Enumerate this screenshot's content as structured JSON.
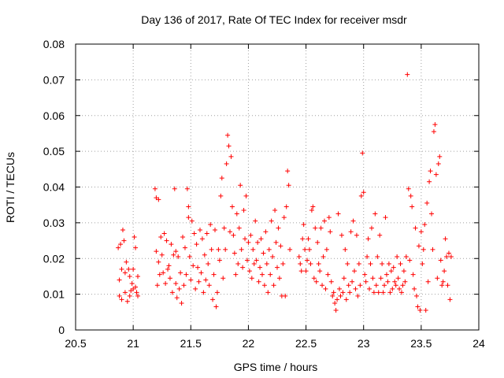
{
  "chart_data": {
    "type": "scatter",
    "title": "Day 136 of 2017, Rate Of TEC Index for receiver msdr",
    "xlabel": "GPS time / hours",
    "ylabel": "ROTI / TECUs",
    "xlim": [
      20.5,
      24
    ],
    "ylim": [
      0,
      0.08
    ],
    "grid": true,
    "marker": "plus",
    "series_color": "#ff0000",
    "x_ticks": [
      20.5,
      21,
      21.5,
      22,
      22.5,
      23,
      23.5,
      24
    ],
    "x_tick_labels": [
      "20.5",
      "21",
      "21.5",
      "22",
      "22.5",
      "23",
      "23.5",
      "24"
    ],
    "y_ticks": [
      0,
      0.01,
      0.02,
      0.03,
      0.04,
      0.05,
      0.06,
      0.07,
      0.08
    ],
    "y_tick_labels": [
      "0",
      "0.01",
      "0.02",
      "0.03",
      "0.04",
      "0.05",
      "0.06",
      "0.07",
      "0.08"
    ],
    "series": [
      {
        "name": "ROTI",
        "points": [
          [
            20.87,
            0.023
          ],
          [
            20.88,
            0.014
          ],
          [
            20.88,
            0.0095
          ],
          [
            20.89,
            0.024
          ],
          [
            20.9,
            0.017
          ],
          [
            20.9,
            0.0085
          ],
          [
            20.91,
            0.028
          ],
          [
            20.92,
            0.025
          ],
          [
            20.93,
            0.016
          ],
          [
            20.93,
            0.0105
          ],
          [
            20.94,
            0.019
          ],
          [
            20.95,
            0.008
          ],
          [
            20.96,
            0.017
          ],
          [
            20.97,
            0.0095
          ],
          [
            20.97,
            0.015
          ],
          [
            20.98,
            0.011
          ],
          [
            20.99,
            0.013
          ],
          [
            21.0,
            0.0115
          ],
          [
            21.0,
            0.017
          ],
          [
            21.01,
            0.026
          ],
          [
            21.02,
            0.023
          ],
          [
            21.02,
            0.012
          ],
          [
            21.03,
            0.0105
          ],
          [
            21.04,
            0.015
          ],
          [
            21.04,
            0.0095
          ],
          [
            21.19,
            0.0395
          ],
          [
            21.2,
            0.037
          ],
          [
            21.2,
            0.022
          ],
          [
            21.21,
            0.0125
          ],
          [
            21.22,
            0.019
          ],
          [
            21.22,
            0.0365
          ],
          [
            21.23,
            0.0155
          ],
          [
            21.24,
            0.026
          ],
          [
            21.25,
            0.021
          ],
          [
            21.26,
            0.016
          ],
          [
            21.27,
            0.027
          ],
          [
            21.28,
            0.013
          ],
          [
            21.29,
            0.025
          ],
          [
            21.3,
            0.017
          ],
          [
            21.31,
            0.018
          ],
          [
            21.32,
            0.0145
          ],
          [
            21.33,
            0.024
          ],
          [
            21.34,
            0.0105
          ],
          [
            21.35,
            0.021
          ],
          [
            21.36,
            0.0395
          ],
          [
            21.37,
            0.013
          ],
          [
            21.37,
            0.022
          ],
          [
            21.38,
            0.009
          ],
          [
            21.39,
            0.0205
          ],
          [
            21.4,
            0.0115
          ],
          [
            21.41,
            0.016
          ],
          [
            21.42,
            0.0075
          ],
          [
            21.43,
            0.026
          ],
          [
            21.44,
            0.0125
          ],
          [
            21.45,
            0.023
          ],
          [
            21.46,
            0.0155
          ],
          [
            21.47,
            0.0395
          ],
          [
            21.48,
            0.0345
          ],
          [
            21.48,
            0.0315
          ],
          [
            21.49,
            0.0205
          ],
          [
            21.5,
            0.014
          ],
          [
            21.51,
            0.0305
          ],
          [
            21.52,
            0.018
          ],
          [
            21.53,
            0.027
          ],
          [
            21.54,
            0.0115
          ],
          [
            21.55,
            0.024
          ],
          [
            21.56,
            0.0175
          ],
          [
            21.57,
            0.0135
          ],
          [
            21.58,
            0.028
          ],
          [
            21.59,
            0.016
          ],
          [
            21.6,
            0.0255
          ],
          [
            21.61,
            0.0105
          ],
          [
            21.62,
            0.021
          ],
          [
            21.63,
            0.014
          ],
          [
            21.64,
            0.027
          ],
          [
            21.65,
            0.0185
          ],
          [
            21.66,
            0.0125
          ],
          [
            21.67,
            0.0295
          ],
          [
            21.68,
            0.0225
          ],
          [
            21.69,
            0.0085
          ],
          [
            21.7,
            0.0155
          ],
          [
            21.71,
            0.028
          ],
          [
            21.72,
            0.0065
          ],
          [
            21.73,
            0.0105
          ],
          [
            21.74,
            0.0225
          ],
          [
            21.75,
            0.0195
          ],
          [
            21.76,
            0.0375
          ],
          [
            21.77,
            0.0425
          ],
          [
            21.78,
            0.0145
          ],
          [
            21.79,
            0.0285
          ],
          [
            21.8,
            0.0225
          ],
          [
            21.81,
            0.0465
          ],
          [
            21.82,
            0.0545
          ],
          [
            21.83,
            0.0515
          ],
          [
            21.84,
            0.0275
          ],
          [
            21.85,
            0.0485
          ],
          [
            21.86,
            0.0345
          ],
          [
            21.87,
            0.0265
          ],
          [
            21.88,
            0.0215
          ],
          [
            21.89,
            0.0155
          ],
          [
            21.9,
            0.0325
          ],
          [
            21.91,
            0.0185
          ],
          [
            21.92,
            0.0285
          ],
          [
            21.93,
            0.0405
          ],
          [
            21.94,
            0.0225
          ],
          [
            21.95,
            0.0175
          ],
          [
            21.96,
            0.0335
          ],
          [
            21.97,
            0.0255
          ],
          [
            21.98,
            0.0375
          ],
          [
            21.99,
            0.0195
          ],
          [
            22.0,
            0.0245
          ],
          [
            22.01,
            0.0165
          ],
          [
            22.02,
            0.0265
          ],
          [
            22.03,
            0.0145
          ],
          [
            22.04,
            0.0225
          ],
          [
            22.05,
            0.0185
          ],
          [
            22.06,
            0.0305
          ],
          [
            22.07,
            0.0195
          ],
          [
            22.08,
            0.0245
          ],
          [
            22.09,
            0.0135
          ],
          [
            22.1,
            0.0175
          ],
          [
            22.11,
            0.0255
          ],
          [
            22.12,
            0.0155
          ],
          [
            22.13,
            0.0215
          ],
          [
            22.14,
            0.0125
          ],
          [
            22.15,
            0.0275
          ],
          [
            22.16,
            0.0185
          ],
          [
            22.17,
            0.0105
          ],
          [
            22.18,
            0.0225
          ],
          [
            22.19,
            0.0155
          ],
          [
            22.2,
            0.0305
          ],
          [
            22.21,
            0.0205
          ],
          [
            22.22,
            0.0125
          ],
          [
            22.23,
            0.0335
          ],
          [
            22.24,
            0.0245
          ],
          [
            22.25,
            0.0175
          ],
          [
            22.26,
            0.0285
          ],
          [
            22.27,
            0.0145
          ],
          [
            22.28,
            0.0235
          ],
          [
            22.29,
            0.0095
          ],
          [
            22.3,
            0.0185
          ],
          [
            22.31,
            0.0315
          ],
          [
            22.32,
            0.0095
          ],
          [
            22.33,
            0.0345
          ],
          [
            22.34,
            0.0445
          ],
          [
            22.35,
            0.0405
          ],
          [
            22.36,
            0.0225
          ],
          [
            22.44,
            0.0205
          ],
          [
            22.45,
            0.0185
          ],
          [
            22.46,
            0.0165
          ],
          [
            22.47,
            0.0255
          ],
          [
            22.48,
            0.0295
          ],
          [
            22.49,
            0.0225
          ],
          [
            22.5,
            0.0165
          ],
          [
            22.51,
            0.0195
          ],
          [
            22.52,
            0.0255
          ],
          [
            22.53,
            0.0225
          ],
          [
            22.54,
            0.0185
          ],
          [
            22.55,
            0.0335
          ],
          [
            22.56,
            0.0345
          ],
          [
            22.57,
            0.0145
          ],
          [
            22.58,
            0.0285
          ],
          [
            22.59,
            0.0135
          ],
          [
            22.6,
            0.0245
          ],
          [
            22.61,
            0.0185
          ],
          [
            22.62,
            0.0165
          ],
          [
            22.63,
            0.0285
          ],
          [
            22.64,
            0.0125
          ],
          [
            22.65,
            0.0205
          ],
          [
            22.66,
            0.0305
          ],
          [
            22.67,
            0.0115
          ],
          [
            22.68,
            0.0225
          ],
          [
            22.69,
            0.0155
          ],
          [
            22.7,
            0.0315
          ],
          [
            22.71,
            0.0275
          ],
          [
            22.72,
            0.0135
          ],
          [
            22.73,
            0.0095
          ],
          [
            22.74,
            0.0105
          ],
          [
            22.75,
            0.0075
          ],
          [
            22.76,
            0.0055
          ],
          [
            22.77,
            0.0085
          ],
          [
            22.78,
            0.0325
          ],
          [
            22.79,
            0.0115
          ],
          [
            22.8,
            0.0095
          ],
          [
            22.81,
            0.0265
          ],
          [
            22.82,
            0.0105
          ],
          [
            22.83,
            0.0145
          ],
          [
            22.84,
            0.0225
          ],
          [
            22.85,
            0.0085
          ],
          [
            22.86,
            0.0185
          ],
          [
            22.87,
            0.0125
          ],
          [
            22.88,
            0.0105
          ],
          [
            22.89,
            0.0275
          ],
          [
            22.9,
            0.0135
          ],
          [
            22.91,
            0.0305
          ],
          [
            22.92,
            0.0165
          ],
          [
            22.93,
            0.0115
          ],
          [
            22.94,
            0.0265
          ],
          [
            22.95,
            0.0095
          ],
          [
            22.96,
            0.0185
          ],
          [
            22.97,
            0.0125
          ],
          [
            22.98,
            0.0375
          ],
          [
            22.99,
            0.0495
          ],
          [
            23.0,
            0.0385
          ],
          [
            23.01,
            0.0155
          ],
          [
            23.02,
            0.0135
          ],
          [
            23.03,
            0.0205
          ],
          [
            23.04,
            0.0255
          ],
          [
            23.05,
            0.0115
          ],
          [
            23.06,
            0.0185
          ],
          [
            23.07,
            0.0285
          ],
          [
            23.08,
            0.0145
          ],
          [
            23.09,
            0.0105
          ],
          [
            23.1,
            0.0325
          ],
          [
            23.11,
            0.0125
          ],
          [
            23.12,
            0.0205
          ],
          [
            23.13,
            0.0105
          ],
          [
            23.14,
            0.0265
          ],
          [
            23.15,
            0.0145
          ],
          [
            23.16,
            0.0185
          ],
          [
            23.17,
            0.0105
          ],
          [
            23.18,
            0.0125
          ],
          [
            23.19,
            0.0315
          ],
          [
            23.2,
            0.0155
          ],
          [
            23.21,
            0.0135
          ],
          [
            23.22,
            0.0185
          ],
          [
            23.23,
            0.0105
          ],
          [
            23.24,
            0.0165
          ],
          [
            23.25,
            0.0115
          ],
          [
            23.26,
            0.0175
          ],
          [
            23.27,
            0.0135
          ],
          [
            23.28,
            0.0125
          ],
          [
            23.29,
            0.0205
          ],
          [
            23.3,
            0.0145
          ],
          [
            23.31,
            0.0115
          ],
          [
            23.32,
            0.0185
          ],
          [
            23.33,
            0.0105
          ],
          [
            23.34,
            0.0125
          ],
          [
            23.35,
            0.0165
          ],
          [
            23.36,
            0.0135
          ],
          [
            23.37,
            0.0205
          ],
          [
            23.38,
            0.0715
          ],
          [
            23.39,
            0.0395
          ],
          [
            23.4,
            0.0195
          ],
          [
            23.41,
            0.0375
          ],
          [
            23.42,
            0.0345
          ],
          [
            23.43,
            0.0155
          ],
          [
            23.44,
            0.0115
          ],
          [
            23.45,
            0.0285
          ],
          [
            23.46,
            0.0095
          ],
          [
            23.47,
            0.0065
          ],
          [
            23.48,
            0.0235
          ],
          [
            23.49,
            0.0055
          ],
          [
            23.5,
            0.0275
          ],
          [
            23.51,
            0.0185
          ],
          [
            23.52,
            0.0225
          ],
          [
            23.53,
            0.0295
          ],
          [
            23.54,
            0.0055
          ],
          [
            23.55,
            0.0355
          ],
          [
            23.56,
            0.0135
          ],
          [
            23.57,
            0.0415
          ],
          [
            23.58,
            0.0445
          ],
          [
            23.59,
            0.0325
          ],
          [
            23.6,
            0.0225
          ],
          [
            23.61,
            0.0555
          ],
          [
            23.62,
            0.0575
          ],
          [
            23.63,
            0.0435
          ],
          [
            23.64,
            0.0145
          ],
          [
            23.65,
            0.0465
          ],
          [
            23.66,
            0.0485
          ],
          [
            23.67,
            0.0195
          ],
          [
            23.68,
            0.0125
          ],
          [
            23.69,
            0.0135
          ],
          [
            23.7,
            0.0165
          ],
          [
            23.71,
            0.0255
          ],
          [
            23.72,
            0.0205
          ],
          [
            23.73,
            0.0125
          ],
          [
            23.74,
            0.0215
          ],
          [
            23.75,
            0.0085
          ],
          [
            23.76,
            0.0205
          ]
        ]
      }
    ]
  }
}
